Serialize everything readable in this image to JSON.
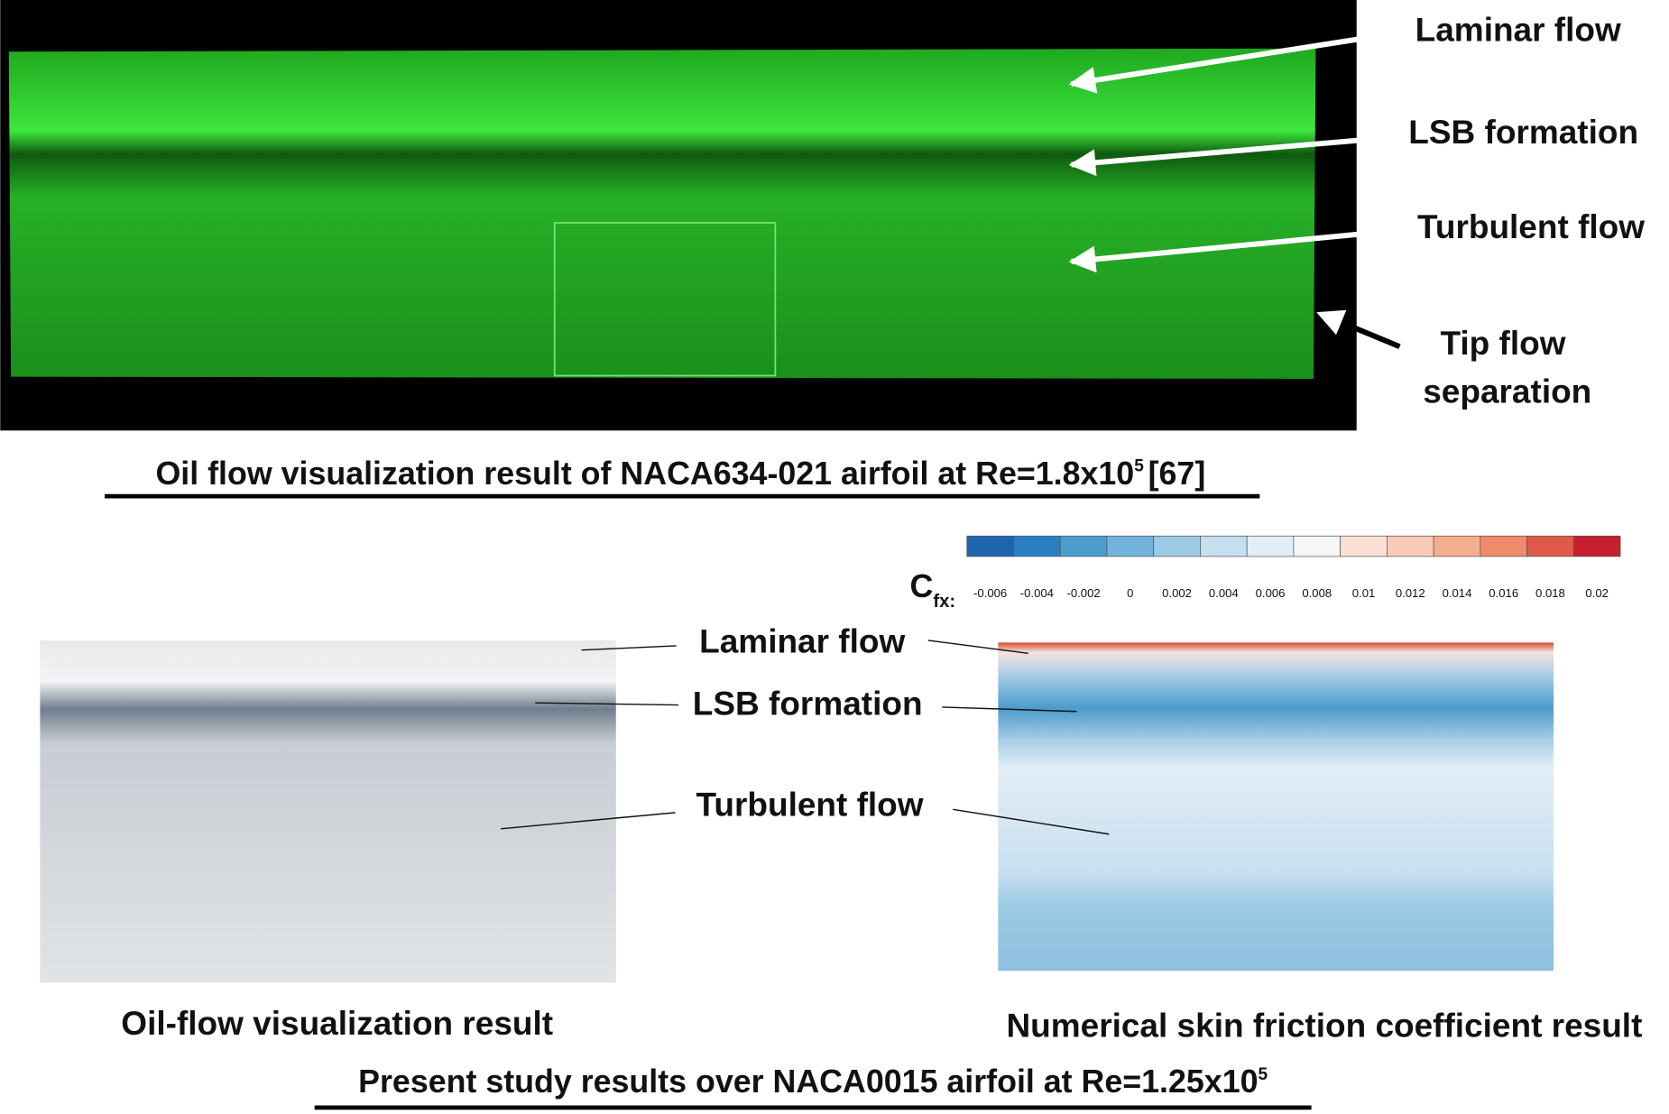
{
  "top_figure": {
    "labels": [
      "Laminar flow",
      "LSB formation",
      "Turbulent flow"
    ],
    "tip_label": [
      "Tip flow",
      "separation"
    ],
    "caption": {
      "text": "Oil flow visualization result of NACA634-021 airfoil at Re=1.8x10",
      "exponent": "5",
      "reference": "[67]"
    }
  },
  "colorbar": {
    "symbol": "C",
    "subscript": "fx:",
    "ticks": [
      -0.006,
      -0.004,
      -0.002,
      0,
      0.002,
      0.004,
      0.006,
      0.008,
      0.01,
      0.012,
      0.014,
      0.016,
      0.018,
      0.02
    ],
    "colors": [
      "#1f65ad",
      "#2b7fc0",
      "#4b9ccf",
      "#72b3db",
      "#9dcbe5",
      "#c3dff0",
      "#e2eef6",
      "#f6f6f6",
      "#fbe0d5",
      "#f9cbb6",
      "#f5ad8f",
      "#ef8a6a",
      "#e05a4c",
      "#c81f30"
    ]
  },
  "bottom_figure": {
    "labels": [
      "Laminar flow",
      "LSB formation",
      "Turbulent flow"
    ],
    "left_caption": "Oil-flow visualization result",
    "right_caption": "Numerical skin friction coefficient result",
    "caption": {
      "text": "Present study results over NACA0015 airfoil at Re=1.25x10",
      "exponent": "5"
    }
  }
}
